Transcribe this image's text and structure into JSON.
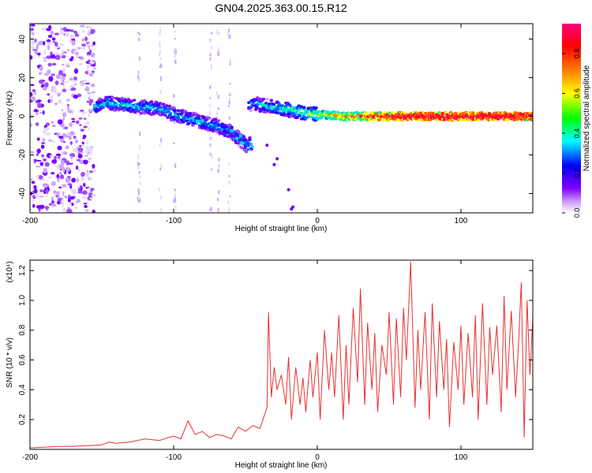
{
  "title": "GN04.2025.363.00.15.R12",
  "chart_data": [
    {
      "type": "heatmap",
      "xlabel": "Height of straight line (km)",
      "ylabel": "Frequency (Hz)",
      "xlim": [
        -200,
        150
      ],
      "ylim": [
        -50,
        48
      ],
      "xticks": [
        -200,
        -100,
        0,
        100
      ],
      "yticks": [
        -40,
        -20,
        0,
        20,
        40
      ],
      "colorbar": {
        "label": "Normalized spectral amplitude",
        "range": [
          0,
          0.95
        ],
        "ticks": [
          0.0,
          0.2,
          0.4,
          0.6,
          0.8
        ],
        "colormap": [
          "#ffffff",
          "#8000ff",
          "#0000ff",
          "#00ffff",
          "#00ff00",
          "#ffff00",
          "#ff8000",
          "#ff0000",
          "#ff0080"
        ]
      },
      "ridge": [
        {
          "x": -200,
          "y": 0
        },
        {
          "x": -180,
          "y": 2
        },
        {
          "x": -160,
          "y": 4
        },
        {
          "x": -145,
          "y": 7
        },
        {
          "x": -125,
          "y": 5
        },
        {
          "x": -110,
          "y": 4
        },
        {
          "x": -100,
          "y": 1
        },
        {
          "x": -85,
          "y": -2
        },
        {
          "x": -70,
          "y": -5
        },
        {
          "x": -60,
          "y": -8
        },
        {
          "x": -48,
          "y": -16
        },
        {
          "x": -48,
          "y": 8
        },
        {
          "x": -40,
          "y": 6
        },
        {
          "x": -25,
          "y": 4
        },
        {
          "x": -10,
          "y": 2
        },
        {
          "x": 0,
          "y": 1
        },
        {
          "x": 20,
          "y": 0
        },
        {
          "x": 60,
          "y": 0
        },
        {
          "x": 100,
          "y": 0
        },
        {
          "x": 150,
          "y": 0
        }
      ]
    },
    {
      "type": "line",
      "xlabel": "Height of straight line (km)",
      "ylabel": "SNR (10 * v/v)",
      "yscale_label": "(x10⁴)",
      "xlim": [
        -200,
        150
      ],
      "ylim": [
        0,
        1.27
      ],
      "xticks": [
        -200,
        -100,
        0,
        100
      ],
      "yticks": [
        0.2,
        0.4,
        0.6,
        0.8,
        1.0,
        1.2
      ],
      "color": "#e8302f",
      "series": [
        {
          "x": [
            -200,
            -190,
            -180,
            -170,
            -160,
            -150,
            -145,
            -140,
            -130,
            -120,
            -110,
            -100,
            -95,
            -90,
            -85,
            -80,
            -75,
            -70,
            -65,
            -60,
            -55,
            -50,
            -45,
            -40,
            -35,
            -34,
            -32,
            -30,
            -28,
            -25,
            -22,
            -20,
            -18,
            -15,
            -12,
            -10,
            -8,
            -5,
            -3,
            0,
            2,
            5,
            8,
            10,
            12,
            15,
            18,
            20,
            22,
            25,
            28,
            30,
            33,
            35,
            38,
            40,
            42,
            45,
            48,
            50,
            53,
            55,
            58,
            60,
            62,
            65,
            68,
            70,
            72,
            75,
            78,
            80,
            83,
            85,
            88,
            90,
            92,
            95,
            98,
            100,
            102,
            105,
            108,
            110,
            112,
            115,
            118,
            120,
            122,
            125,
            128,
            130,
            132,
            135,
            138,
            140,
            142,
            144,
            146,
            148,
            150
          ],
          "y": [
            0.01,
            0.015,
            0.02,
            0.02,
            0.025,
            0.03,
            0.05,
            0.04,
            0.05,
            0.07,
            0.06,
            0.09,
            0.07,
            0.19,
            0.1,
            0.12,
            0.08,
            0.1,
            0.09,
            0.07,
            0.15,
            0.12,
            0.16,
            0.14,
            0.28,
            0.92,
            0.35,
            0.55,
            0.4,
            0.5,
            0.3,
            0.62,
            0.2,
            0.55,
            0.3,
            0.48,
            0.25,
            0.6,
            0.35,
            0.65,
            0.2,
            0.8,
            0.4,
            0.65,
            0.35,
            0.9,
            0.2,
            0.7,
            0.3,
            0.95,
            0.45,
            1.08,
            0.3,
            0.85,
            0.4,
            0.78,
            0.25,
            0.7,
            0.5,
            0.92,
            0.3,
            0.88,
            0.35,
            0.95,
            0.6,
            1.26,
            0.28,
            0.8,
            0.4,
            0.92,
            0.2,
            0.98,
            0.35,
            0.86,
            0.4,
            0.74,
            0.15,
            0.72,
            0.4,
            0.83,
            0.3,
            0.78,
            0.35,
            0.9,
            0.2,
            0.98,
            0.3,
            0.82,
            0.5,
            0.83,
            0.25,
            1.03,
            0.4,
            0.93,
            0.35,
            0.7,
            1.12,
            0.08,
            1.0,
            0.5,
            0.88
          ]
        }
      ]
    }
  ]
}
